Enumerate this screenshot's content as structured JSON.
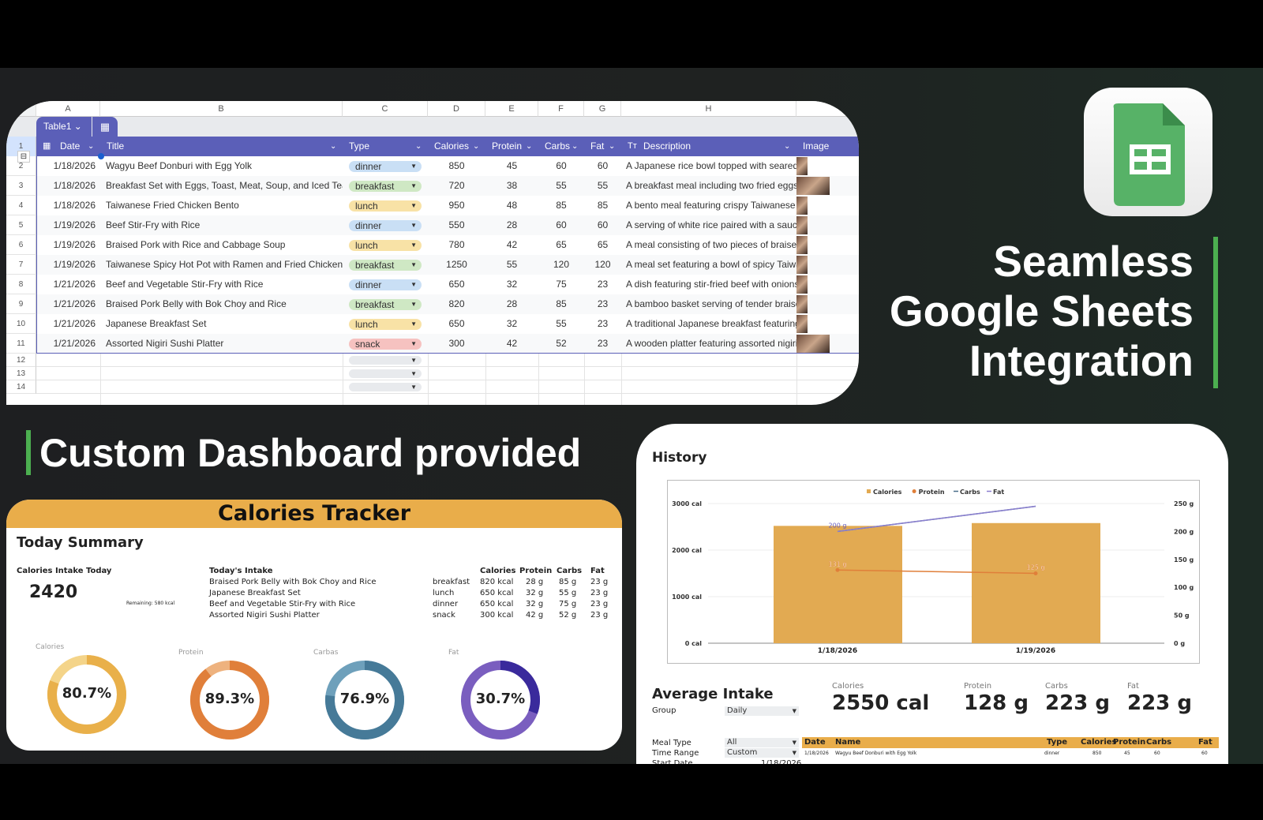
{
  "sheet": {
    "columns": [
      "A",
      "B",
      "C",
      "D",
      "E",
      "F",
      "G",
      "H"
    ],
    "table_name": "Table1",
    "headers": {
      "date": "Date",
      "title": "Title",
      "type": "Type",
      "calories": "Calories",
      "protein": "Protein (g",
      "carbs": "Carbs (g",
      "fat": "Fat (g",
      "description": "Description",
      "image": "Image"
    },
    "rows": [
      {
        "n": "2",
        "date": "1/18/2026",
        "title": "Wagyu Beef Donburi with Egg Yolk",
        "type": "dinner",
        "cal": "850",
        "protein": "45",
        "carbs": "60",
        "fat": "60",
        "desc": "A Japanese rice bowl topped with seared w"
      },
      {
        "n": "3",
        "date": "1/18/2026",
        "title": "Breakfast Set with Eggs, Toast, Meat, Soup, and Iced Tea",
        "type": "breakfast",
        "cal": "720",
        "protein": "38",
        "carbs": "55",
        "fat": "55",
        "desc": "A breakfast meal including two fried eggs, a"
      },
      {
        "n": "4",
        "date": "1/18/2026",
        "title": "Taiwanese Fried Chicken Bento",
        "type": "lunch",
        "cal": "950",
        "protein": "48",
        "carbs": "85",
        "fat": "85",
        "desc": "A bento meal featuring crispy Taiwanese fri"
      },
      {
        "n": "5",
        "date": "1/19/2026",
        "title": "Beef Stir-Fry with Rice",
        "type": "dinner",
        "cal": "550",
        "protein": "28",
        "carbs": "60",
        "fat": "60",
        "desc": "A serving of white rice paired with a saucy b"
      },
      {
        "n": "6",
        "date": "1/19/2026",
        "title": "Braised Pork with Rice and Cabbage Soup",
        "type": "lunch",
        "cal": "780",
        "protein": "42",
        "carbs": "65",
        "fat": "65",
        "desc": "A meal consisting of two pieces of braised"
      },
      {
        "n": "7",
        "date": "1/19/2026",
        "title": "Taiwanese Spicy Hot Pot with Ramen and Fried Chicken",
        "type": "breakfast",
        "cal": "1250",
        "protein": "55",
        "carbs": "120",
        "fat": "120",
        "desc": "A meal set featuring a bowl of spicy Taiwan"
      },
      {
        "n": "8",
        "date": "1/21/2026",
        "title": "Beef and Vegetable Stir-Fry with Rice",
        "type": "dinner",
        "cal": "650",
        "protein": "32",
        "carbs": "75",
        "fat": "23",
        "desc": "A dish featuring stir-fried beef with onions,"
      },
      {
        "n": "9",
        "date": "1/21/2026",
        "title": "Braised Pork Belly with Bok Choy and Rice",
        "type": "breakfast",
        "cal": "820",
        "protein": "28",
        "carbs": "85",
        "fat": "23",
        "desc": "A bamboo basket serving of tender braised"
      },
      {
        "n": "10",
        "date": "1/21/2026",
        "title": "Japanese Breakfast Set",
        "type": "lunch",
        "cal": "650",
        "protein": "32",
        "carbs": "55",
        "fat": "23",
        "desc": "A traditional Japanese breakfast featuring"
      },
      {
        "n": "11",
        "date": "1/21/2026",
        "title": "Assorted Nigiri Sushi Platter",
        "type": "snack",
        "cal": "300",
        "protein": "42",
        "carbs": "52",
        "fat": "23",
        "desc": "A wooden platter featuring assorted nigiri s"
      }
    ],
    "empty_rows": [
      "12",
      "13",
      "14"
    ],
    "type_colors": {
      "dinner": "#c9dff5",
      "breakfast": "#cfe8c4",
      "lunch": "#f8e2a6",
      "snack": "#f6c2c0"
    },
    "header_color": "#5b5fb8"
  },
  "headline": {
    "line1": "Seamless",
    "line2": "Google Sheets",
    "line3": "Integration"
  },
  "subheadline": "Custom Dashboard provided",
  "tracker": {
    "title": "Calories Tracker",
    "summary_title": "Today Summary",
    "intake_label": "Calories Intake Today",
    "intake_value": "2420",
    "remaining": "Remaining: 580 kcal",
    "table_title": "Today's Intake",
    "cols": [
      "Calories",
      "Protein",
      "Carbs",
      "Fat"
    ],
    "items": [
      {
        "name": "Braised Pork Belly with Bok Choy and Rice",
        "type": "breakfast",
        "cal": "820 kcal",
        "protein": "28 g",
        "carbs": "85 g",
        "fat": "23 g"
      },
      {
        "name": "Japanese Breakfast Set",
        "type": "lunch",
        "cal": "650 kcal",
        "protein": "32 g",
        "carbs": "55 g",
        "fat": "23 g"
      },
      {
        "name": "Beef and Vegetable Stir-Fry with Rice",
        "type": "dinner",
        "cal": "650 kcal",
        "protein": "32 g",
        "carbs": "75 g",
        "fat": "23 g"
      },
      {
        "name": "Assorted Nigiri Sushi Platter",
        "type": "snack",
        "cal": "300 kcal",
        "protein": "42 g",
        "carbs": "52 g",
        "fat": "23 g"
      }
    ],
    "donuts": [
      {
        "label": "Calories",
        "value": "80.7%",
        "pct": 80.7,
        "color": "#e9b04a",
        "rest": "#f4d489"
      },
      {
        "label": "Protein",
        "value": "89.3%",
        "pct": 89.3,
        "color": "#e07f3a",
        "rest": "#eeb27e"
      },
      {
        "label": "Carbas",
        "value": "76.9%",
        "pct": 76.9,
        "color": "#467a98",
        "rest": "#6ea0bb"
      },
      {
        "label": "Fat",
        "value": "30.7%",
        "pct": 30.7,
        "color": "#3a2a9c",
        "rest": "#7a5ebf"
      }
    ]
  },
  "history": {
    "title": "History",
    "chart_data": {
      "type": "bar+line",
      "categories": [
        "1/18/2026",
        "1/19/2026"
      ],
      "legend": [
        "Calories",
        "Protein",
        "Carbs",
        "Fat"
      ],
      "legend_position": "top",
      "series": [
        {
          "name": "Calories",
          "type": "bar",
          "axis": "left",
          "values": [
            2520,
            2580
          ],
          "color": "#e2aa52"
        },
        {
          "name": "Protein",
          "type": "line",
          "axis": "right",
          "values": [
            131,
            125
          ],
          "color": "#e07f3a",
          "labels": [
            "131 g",
            "125 g"
          ]
        },
        {
          "name": "Carbs",
          "type": "line",
          "axis": "right",
          "values": [
            200,
            245
          ],
          "color": "#4a6f8a"
        },
        {
          "name": "Fat",
          "type": "line",
          "axis": "right",
          "values": [
            200,
            245
          ],
          "color": "#8b7fd0",
          "labels": [
            "200 g",
            ""
          ]
        }
      ],
      "left_axis": {
        "min": 0,
        "max": 3000,
        "ticks": [
          "0 cal",
          "1000 cal",
          "2000 cal",
          "3000 cal"
        ]
      },
      "right_axis": {
        "min": 0,
        "max": 250,
        "ticks": [
          "0 g",
          "50 g",
          "100 g",
          "150 g",
          "200 g",
          "250 g"
        ]
      },
      "grid": true
    },
    "avg_title": "Average Intake",
    "group_label": "Group",
    "group_value": "Daily",
    "avg": [
      {
        "label": "Calories",
        "value": "2550 cal"
      },
      {
        "label": "Protein",
        "value": "128 g"
      },
      {
        "label": "Carbs",
        "value": "223 g"
      },
      {
        "label": "Fat",
        "value": "223 g"
      }
    ],
    "meal_type_label": "Meal Type",
    "meal_type_value": "All",
    "time_range_label": "Time Range",
    "time_range_value": "Custom",
    "start_date_label": "Start Date",
    "start_date_value": "1/18/2026",
    "table_cols": [
      "Date",
      "Name",
      "Type",
      "Calories",
      "Protein",
      "Carbs",
      "Fat"
    ],
    "table_rows": [
      [
        "1/18/2026",
        "Wagyu Beef Donburi with Egg Yolk",
        "dinner",
        "850",
        "45",
        "60",
        "60"
      ]
    ]
  }
}
